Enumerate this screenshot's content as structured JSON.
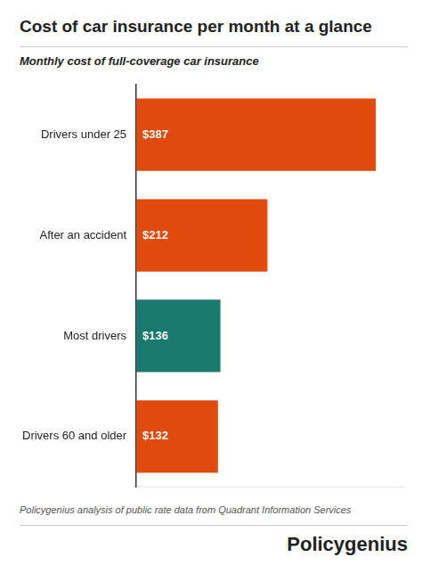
{
  "chart_data": {
    "type": "bar",
    "orientation": "horizontal",
    "title": "Cost of car insurance per month at a glance",
    "subtitle": "Monthly cost of full-coverage car insurance",
    "annotations": [
      "Policygenius analysis of public rate data from Quadrant Information Services",
      "Policygenius"
    ],
    "categories": [
      "Drivers 60 and older",
      "Most drivers",
      "After an accident",
      "Drivers under 25"
    ],
    "values": [
      132,
      136,
      212,
      387
    ],
    "value_labels": [
      "$132",
      "$136",
      "$212",
      "$387"
    ],
    "data_labels": true,
    "colors": [
      "#E04A0C",
      "#1A7A6E",
      "#E04A0C",
      "#E04A0C"
    ],
    "xlim": [
      0,
      430
    ],
    "xticks": [],
    "grid": false,
    "tick_labels": "y"
  }
}
